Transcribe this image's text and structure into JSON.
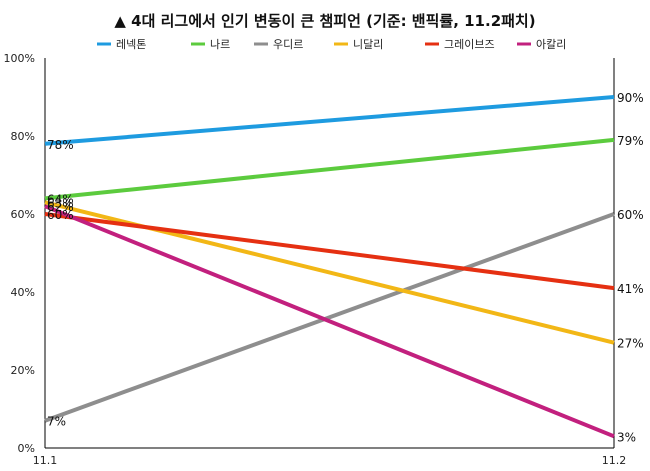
{
  "chart_data": {
    "type": "line",
    "title": "▲ 4대 리그에서 인기 변동이 큰 챔피언 (기준: 밴픽률, 11.2패치)",
    "categories": [
      "11.1",
      "11.2"
    ],
    "ylim": [
      0,
      100
    ],
    "yticks": [
      "0%",
      "20%",
      "40%",
      "60%",
      "80%",
      "100%"
    ],
    "grid": false,
    "legend_position": "top",
    "series": [
      {
        "name": "레넥톤",
        "color": "#1E9BE0",
        "values": [
          78,
          90
        ],
        "labels": [
          "78%",
          "90%"
        ]
      },
      {
        "name": "나르",
        "color": "#5CCB3E",
        "values": [
          64,
          79
        ],
        "labels": [
          "64%",
          "79%"
        ]
      },
      {
        "name": "우디르",
        "color": "#8E8E8E",
        "values": [
          7,
          60
        ],
        "labels": [
          "7%",
          "60%"
        ]
      },
      {
        "name": "니달리",
        "color": "#F2B716",
        "values": [
          63,
          27
        ],
        "labels": [
          "63%",
          "27%"
        ]
      },
      {
        "name": "그레이브즈",
        "color": "#E53012",
        "values": [
          60,
          41
        ],
        "labels": [
          "60%",
          "41%"
        ]
      },
      {
        "name": "아칼리",
        "color": "#C2207E",
        "values": [
          62,
          3
        ],
        "labels": [
          "62%",
          "3%"
        ]
      }
    ]
  }
}
